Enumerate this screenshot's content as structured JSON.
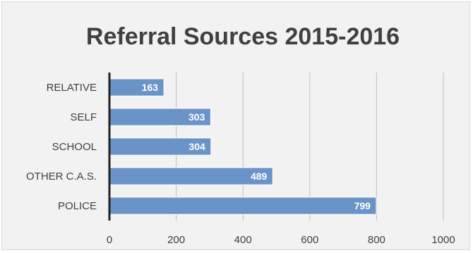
{
  "chart_data": {
    "type": "bar",
    "orientation": "horizontal",
    "title": "Referral Sources 2015-2016",
    "categories": [
      "RELATIVE",
      "SELF",
      "SCHOOL",
      "OTHER C.A.S.",
      "POLICE"
    ],
    "values": [
      163,
      303,
      304,
      489,
      799
    ],
    "data_labels": [
      "163",
      "303",
      "304",
      "489",
      "799"
    ],
    "xlim": [
      0,
      1000
    ],
    "x_ticks": [
      "0",
      "200",
      "400",
      "600",
      "800",
      "1000"
    ],
    "xlabel": "",
    "ylabel": "",
    "grid": true,
    "legend": "none",
    "colors": {
      "bar": "#6a93c8",
      "bar_border": "#ffffff",
      "background": "#f2f2f2",
      "gridline": "#bfbfbf",
      "axis_line": "#222222",
      "text": "#404040",
      "data_label": "#ffffff"
    }
  }
}
